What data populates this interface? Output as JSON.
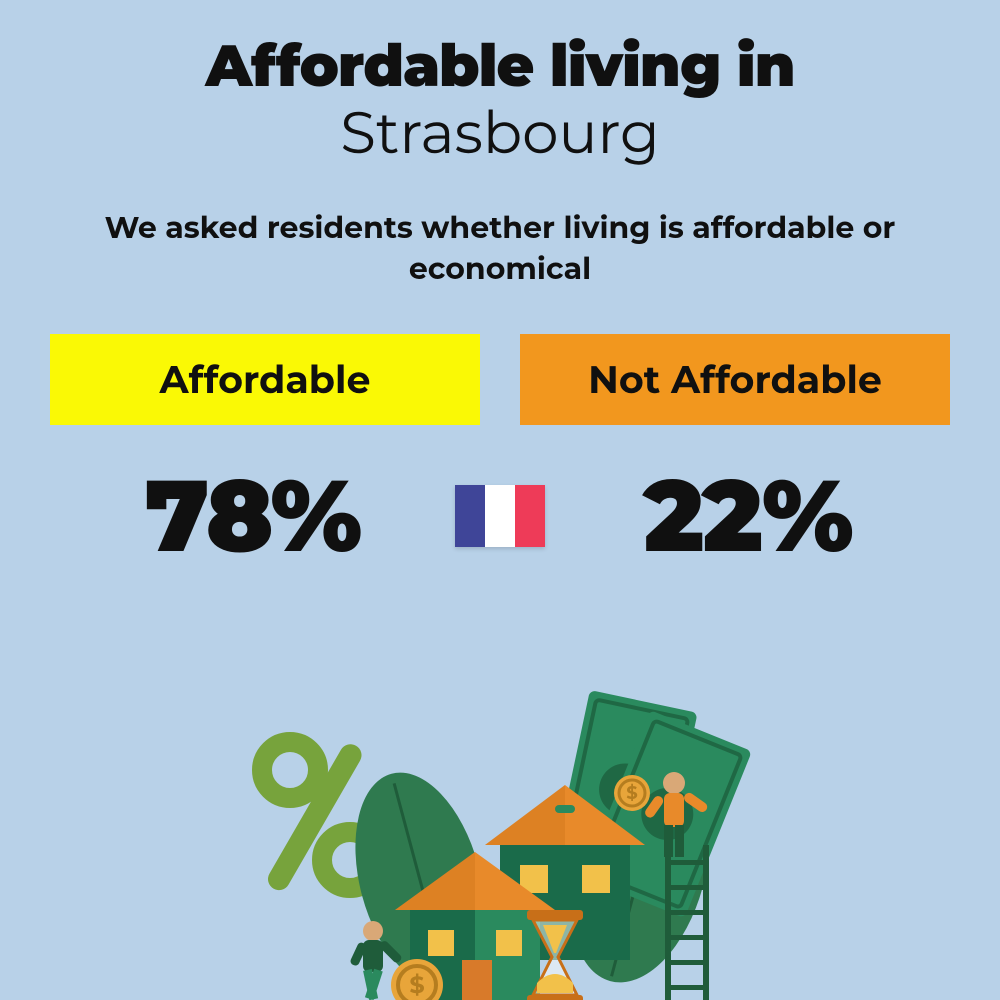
{
  "header": {
    "title": "Affordable living in",
    "city": "Strasbourg",
    "title_fontsize": 58,
    "title_fontweight": 900,
    "city_fontsize": 58,
    "city_fontweight": 400,
    "text_color": "#101010"
  },
  "question": {
    "text": "We asked residents whether living is affordable or economical",
    "fontsize": 30,
    "fontweight": 700
  },
  "options": {
    "affordable": {
      "label": "Affordable",
      "value": "78%",
      "box_bg": "#faf905",
      "box_text": "#101010"
    },
    "not_affordable": {
      "label": "Not Affordable",
      "value": "22%",
      "box_bg": "#f2971e",
      "box_text": "#101010"
    },
    "label_fontsize": 38,
    "value_fontsize": 100,
    "value_fontweight": 900
  },
  "flag": {
    "name": "france-flag",
    "stripes": [
      "#3f4598",
      "#ffffff",
      "#ee3b58"
    ],
    "width": 90,
    "height": 62
  },
  "background_color": "#b8d1e8",
  "illustration": {
    "percent_color": "#77a33c",
    "leaf_color": "#2f7a4f",
    "leaf_dark": "#1f5c3a",
    "house_wall": "#1a6b4a",
    "house_wall_light": "#2a8a5e",
    "roof_color": "#e88a2a",
    "roof_dark": "#c86f18",
    "window_color": "#f2c14a",
    "door_color": "#d87a2a",
    "cash_color": "#2a8a5e",
    "cash_dark": "#1f6844",
    "coin_color": "#e8a53a",
    "coin_dark": "#b57d1f",
    "person1_shirt": "#1f5c3a",
    "person1_pants": "#2a8a5e",
    "person2_shirt": "#e88a2a",
    "person2_pants": "#1f5c3a",
    "skin_color": "#d9a877",
    "hourglass_frame": "#c86f18",
    "hourglass_sand": "#f2c14a",
    "ladder_color": "#1f5c3a"
  }
}
